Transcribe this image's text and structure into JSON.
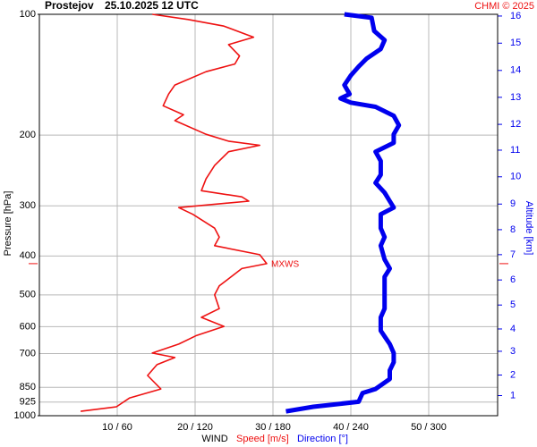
{
  "chart_data": {
    "type": "line",
    "station": "Prostejov",
    "title": "25.10.2025 12 UTC",
    "credit": "CHMI © 2025",
    "ylabel": "Pressure [hPa]",
    "y2label": "Altitude [km]",
    "xlabel": "WIND",
    "log_y": true,
    "ylim": [
      1000,
      100
    ],
    "yticks": [
      100,
      200,
      300,
      400,
      500,
      600,
      700,
      850,
      925,
      1000
    ],
    "xlim": [
      0,
      58.85
    ],
    "x2lim": [
      0,
      353.1
    ],
    "xticks": [
      {
        "value": 10,
        "label": "10 / 60"
      },
      {
        "value": 20,
        "label": "20 / 120"
      },
      {
        "value": 30,
        "label": "30 / 180"
      },
      {
        "value": 40,
        "label": "40 / 240"
      },
      {
        "value": 50,
        "label": "50 / 300"
      }
    ],
    "grid": true,
    "y2ticks": [
      {
        "value": 1,
        "pressure": 891
      },
      {
        "value": 2,
        "pressure": 792
      },
      {
        "value": 3,
        "pressure": 691
      },
      {
        "value": 4,
        "pressure": 608
      },
      {
        "value": 5,
        "pressure": 530
      },
      {
        "value": 6,
        "pressure": 459
      },
      {
        "value": 7,
        "pressure": 397
      },
      {
        "value": 8,
        "pressure": 344
      },
      {
        "value": 9,
        "pressure": 297
      },
      {
        "value": 10,
        "pressure": 254
      },
      {
        "value": 11,
        "pressure": 218
      },
      {
        "value": 12,
        "pressure": 188
      },
      {
        "value": 13,
        "pressure": 161
      },
      {
        "value": 14,
        "pressure": 138
      },
      {
        "value": 15,
        "pressure": 118
      },
      {
        "value": 16,
        "pressure": 101
      }
    ],
    "annotation": {
      "text": "MXWS",
      "pressure": 418,
      "speed": 29.2
    },
    "series": [
      {
        "name": "Speed [m/s]",
        "color": "#ee1111",
        "pressure": [
          100,
          103,
          107,
          114,
          119,
          127,
          133,
          139,
          150,
          158,
          169,
          178,
          184,
          199,
          207,
          212,
          220,
          238,
          257,
          275,
          285,
          292,
          303,
          315,
          341,
          359,
          377,
          397,
          418,
          430,
          475,
          500,
          541,
          569,
          599,
          631,
          663,
          698,
          716,
          746,
          794,
          858,
          903,
          950,
          975
        ],
        "values": [
          14.5,
          19.1,
          23.7,
          27.5,
          24.3,
          25.7,
          25.1,
          21.4,
          17.4,
          16.6,
          15.9,
          18.5,
          17.4,
          21.4,
          24.3,
          28.3,
          24.3,
          22.5,
          21.4,
          20.8,
          26.0,
          26.9,
          17.9,
          19.7,
          22.5,
          23.1,
          22.5,
          28.3,
          29.2,
          26.0,
          23.1,
          22.5,
          23.1,
          20.8,
          23.7,
          20.2,
          17.9,
          14.5,
          17.4,
          15.1,
          13.9,
          15.6,
          11.6,
          9.9,
          5.3
        ]
      },
      {
        "name": "Direction [°]",
        "color": "#0000ee",
        "axis": "x2",
        "pressure": [
          100,
          102,
          110,
          116,
          122,
          129,
          135,
          142,
          150,
          158,
          162,
          166,
          170,
          179,
          189,
          199,
          209,
          220,
          232,
          251,
          263,
          278,
          292,
          303,
          315,
          341,
          359,
          377,
          408,
          430,
          451,
          500,
          541,
          569,
          614,
          663,
          698,
          736,
          771,
          810,
          858,
          878,
          923,
          950,
          975
        ],
        "values": [
          235,
          256,
          258,
          266,
          263,
          252,
          246,
          240,
          235,
          239,
          232,
          240,
          259,
          273,
          277,
          273,
          273,
          259,
          263,
          263,
          259,
          266,
          270,
          273,
          263,
          263,
          266,
          263,
          266,
          270,
          266,
          266,
          266,
          263,
          263,
          270,
          273,
          273,
          270,
          270,
          259,
          249,
          246,
          211,
          190
        ]
      }
    ]
  }
}
